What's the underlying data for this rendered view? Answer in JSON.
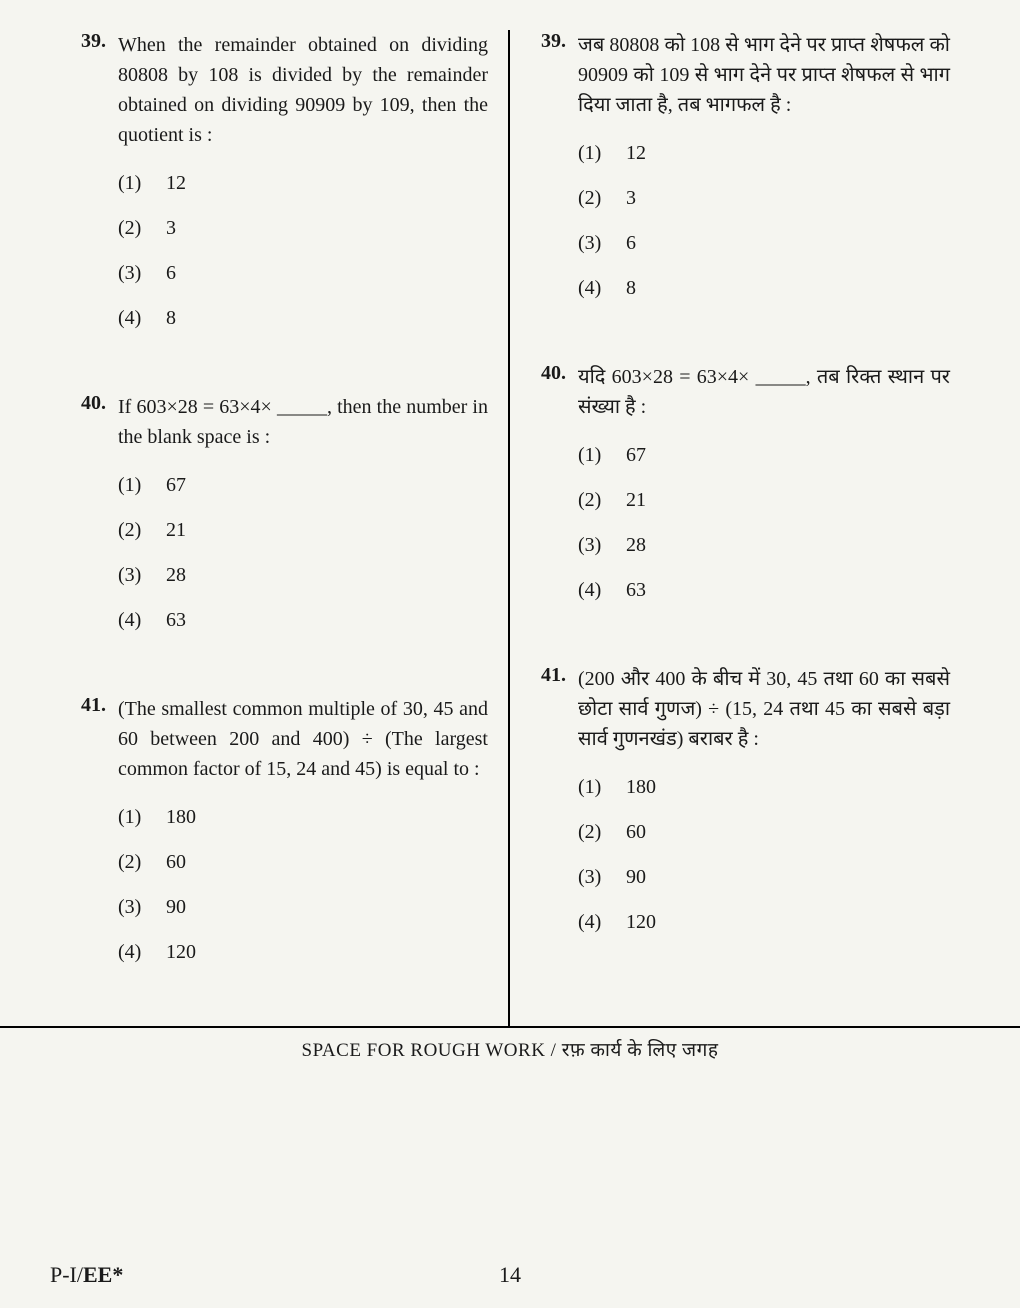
{
  "left": {
    "q39": {
      "num": "39.",
      "text": "When the remainder obtained on dividing 80808 by 108 is divided by the remainder obtained on dividing 90909 by 109, then the quotient is :",
      "opts": [
        {
          "n": "(1)",
          "v": "12"
        },
        {
          "n": "(2)",
          "v": "3"
        },
        {
          "n": "(3)",
          "v": "6"
        },
        {
          "n": "(4)",
          "v": "8"
        }
      ]
    },
    "q40": {
      "num": "40.",
      "text": "If 603×28 = 63×4× _____, then the number in the blank space is :",
      "opts": [
        {
          "n": "(1)",
          "v": "67"
        },
        {
          "n": "(2)",
          "v": "21"
        },
        {
          "n": "(3)",
          "v": "28"
        },
        {
          "n": "(4)",
          "v": "63"
        }
      ]
    },
    "q41": {
      "num": "41.",
      "text": "(The smallest common multiple of 30, 45 and 60 between 200 and 400) ÷ (The largest common factor of 15, 24 and 45) is equal to :",
      "opts": [
        {
          "n": "(1)",
          "v": "180"
        },
        {
          "n": "(2)",
          "v": "60"
        },
        {
          "n": "(3)",
          "v": "90"
        },
        {
          "n": "(4)",
          "v": "120"
        }
      ]
    }
  },
  "right": {
    "q39": {
      "num": "39.",
      "text": "जब 80808 को 108 से भाग देने पर प्राप्त शेषफल को 90909 को 109 से भाग देने पर प्राप्त शेषफल से भाग दिया जाता है, तब भागफल है :",
      "opts": [
        {
          "n": "(1)",
          "v": "12"
        },
        {
          "n": "(2)",
          "v": "3"
        },
        {
          "n": "(3)",
          "v": "6"
        },
        {
          "n": "(4)",
          "v": "8"
        }
      ]
    },
    "q40": {
      "num": "40.",
      "text": "यदि 603×28 = 63×4× _____, तब रिक्त स्थान पर संख्या है :",
      "opts": [
        {
          "n": "(1)",
          "v": "67"
        },
        {
          "n": "(2)",
          "v": "21"
        },
        {
          "n": "(3)",
          "v": "28"
        },
        {
          "n": "(4)",
          "v": "63"
        }
      ]
    },
    "q41": {
      "num": "41.",
      "text": "(200 और 400 के बीच में 30, 45 तथा 60 का सबसे छोटा सार्व गुणज) ÷ (15, 24 तथा 45 का सबसे बड़ा सार्व गुणनखंड) बराबर है :",
      "opts": [
        {
          "n": "(1)",
          "v": "180"
        },
        {
          "n": "(2)",
          "v": "60"
        },
        {
          "n": "(3)",
          "v": "90"
        },
        {
          "n": "(4)",
          "v": "120"
        }
      ]
    }
  },
  "rough_label": "SPACE FOR ROUGH WORK / रफ़ कार्य के लिए जगह",
  "footer": {
    "code_prefix": "P-I/",
    "code_bold": "EE*",
    "pagenum": "14"
  }
}
